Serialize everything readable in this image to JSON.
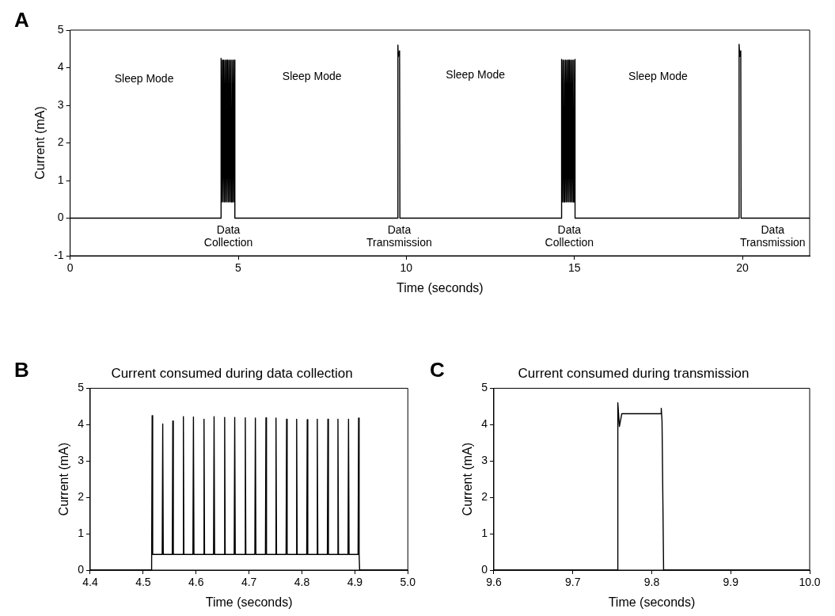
{
  "chart_data": [
    {
      "type": "line",
      "xlabel": "Time (seconds)",
      "ylabel": "Current (mA)",
      "xlim": [
        0,
        22
      ],
      "ylim": [
        -1,
        5
      ],
      "xticks": [
        0,
        5,
        10,
        15,
        20
      ],
      "yticks": [
        -1,
        0,
        1,
        2,
        3,
        4,
        5
      ],
      "series": [
        {
          "color": "#000000",
          "x": [
            0,
            4.49,
            4.49,
            4.51,
            4.53,
            4.55,
            4.57,
            4.59,
            4.61,
            4.63,
            4.65,
            4.67,
            4.69,
            4.71,
            4.73,
            4.75,
            4.77,
            4.79,
            4.81,
            4.83,
            4.85,
            4.87,
            4.89,
            4.9,
            4.9,
            9.75,
            9.75,
            9.76,
            9.8,
            9.81,
            14.62,
            14.62,
            14.64,
            14.66,
            14.68,
            14.7,
            14.72,
            14.74,
            14.76,
            14.78,
            14.8,
            14.82,
            14.84,
            14.86,
            14.88,
            14.9,
            14.92,
            14.94,
            14.96,
            14.98,
            15.0,
            15.02,
            15.02,
            19.9,
            19.9,
            19.92,
            19.95,
            19.96,
            22
          ],
          "values": [
            0,
            0,
            4.25,
            0.43,
            4.2,
            0.43,
            4.2,
            0.43,
            4.2,
            0.43,
            4.2,
            0.43,
            4.2,
            0.43,
            4.2,
            0.43,
            4.2,
            0.43,
            4.2,
            0.43,
            4.2,
            0.43,
            4.2,
            0.43,
            0,
            0,
            4.6,
            4.3,
            4.45,
            0,
            0,
            4.22,
            0.43,
            4.2,
            0.43,
            4.2,
            0.43,
            4.2,
            0.43,
            4.2,
            0.43,
            4.2,
            0.43,
            4.2,
            0.43,
            4.2,
            0.43,
            4.2,
            0.43,
            4.2,
            0.43,
            4.22,
            0,
            0,
            4.62,
            4.3,
            4.45,
            0,
            0
          ]
        }
      ],
      "annotations": [
        "A",
        "Sleep Mode",
        "Sleep Mode",
        "Sleep Mode",
        "Sleep Mode",
        "Data Collection",
        "Data Transmission",
        "Data Collection",
        "Data Transmission"
      ]
    },
    {
      "type": "line",
      "title": "Current consumed during data collection",
      "xlabel": "Time (seconds)",
      "ylabel": "Current (mA)",
      "xlim": [
        4.4,
        5.0
      ],
      "ylim": [
        0,
        5
      ],
      "xticks": [
        4.4,
        4.5,
        4.6,
        4.7,
        4.8,
        4.9,
        {
          "value": 5.0,
          "label": "5.0"
        }
      ],
      "yticks": [
        0,
        1,
        2,
        3,
        4,
        5
      ],
      "series": [
        {
          "color": "#000000",
          "x": [
            4.4,
            4.516,
            4.517,
            4.518,
            4.536,
            4.537,
            4.538,
            4.555,
            4.556,
            4.557,
            4.575,
            4.576,
            4.577,
            4.594,
            4.595,
            4.596,
            4.614,
            4.615,
            4.616,
            4.633,
            4.634,
            4.635,
            4.653,
            4.654,
            4.655,
            4.672,
            4.673,
            4.674,
            4.692,
            4.693,
            4.694,
            4.711,
            4.712,
            4.713,
            4.731,
            4.732,
            4.733,
            4.75,
            4.751,
            4.752,
            4.77,
            4.771,
            4.772,
            4.789,
            4.79,
            4.791,
            4.809,
            4.81,
            4.811,
            4.828,
            4.829,
            4.83,
            4.848,
            4.849,
            4.85,
            4.867,
            4.868,
            4.869,
            4.887,
            4.888,
            4.889,
            4.906,
            4.907,
            4.908,
            4.909,
            5.0
          ],
          "values": [
            0,
            0,
            4.25,
            0.43,
            0.43,
            4.02,
            0.43,
            0.43,
            4.1,
            0.43,
            0.43,
            4.22,
            0.43,
            0.43,
            4.21,
            0.43,
            0.43,
            4.15,
            0.43,
            0.43,
            4.22,
            0.43,
            0.43,
            4.2,
            0.43,
            0.43,
            4.2,
            0.43,
            0.43,
            4.19,
            0.43,
            0.43,
            4.18,
            0.43,
            0.43,
            4.19,
            0.43,
            0.43,
            4.18,
            0.43,
            0.43,
            4.15,
            0.43,
            0.43,
            4.15,
            0.43,
            0.43,
            4.14,
            0.43,
            0.43,
            4.15,
            0.43,
            0.43,
            4.15,
            0.43,
            0.43,
            4.15,
            0.43,
            0.43,
            4.15,
            0.43,
            0.43,
            4.18,
            0.43,
            0,
            0
          ]
        }
      ],
      "annotations": [
        "B"
      ]
    },
    {
      "type": "line",
      "title": "Current consumed during transmission",
      "xlabel": "Time (seconds)",
      "ylabel": "Current (mA)",
      "xlim": [
        9.6,
        10.0
      ],
      "ylim": [
        0,
        5
      ],
      "xticks": [
        9.6,
        9.7,
        9.8,
        9.9,
        {
          "value": 10.0,
          "label": "10.0"
        }
      ],
      "yticks": [
        0,
        1,
        2,
        3,
        4,
        5
      ],
      "series": [
        {
          "color": "#000000",
          "x": [
            9.6,
            9.757,
            9.757,
            9.759,
            9.762,
            9.812,
            9.812,
            9.813,
            9.815,
            10.0
          ],
          "values": [
            0,
            0,
            4.6,
            3.95,
            4.3,
            4.3,
            4.45,
            4.1,
            0,
            0
          ]
        }
      ],
      "annotations": [
        "C"
      ]
    }
  ]
}
